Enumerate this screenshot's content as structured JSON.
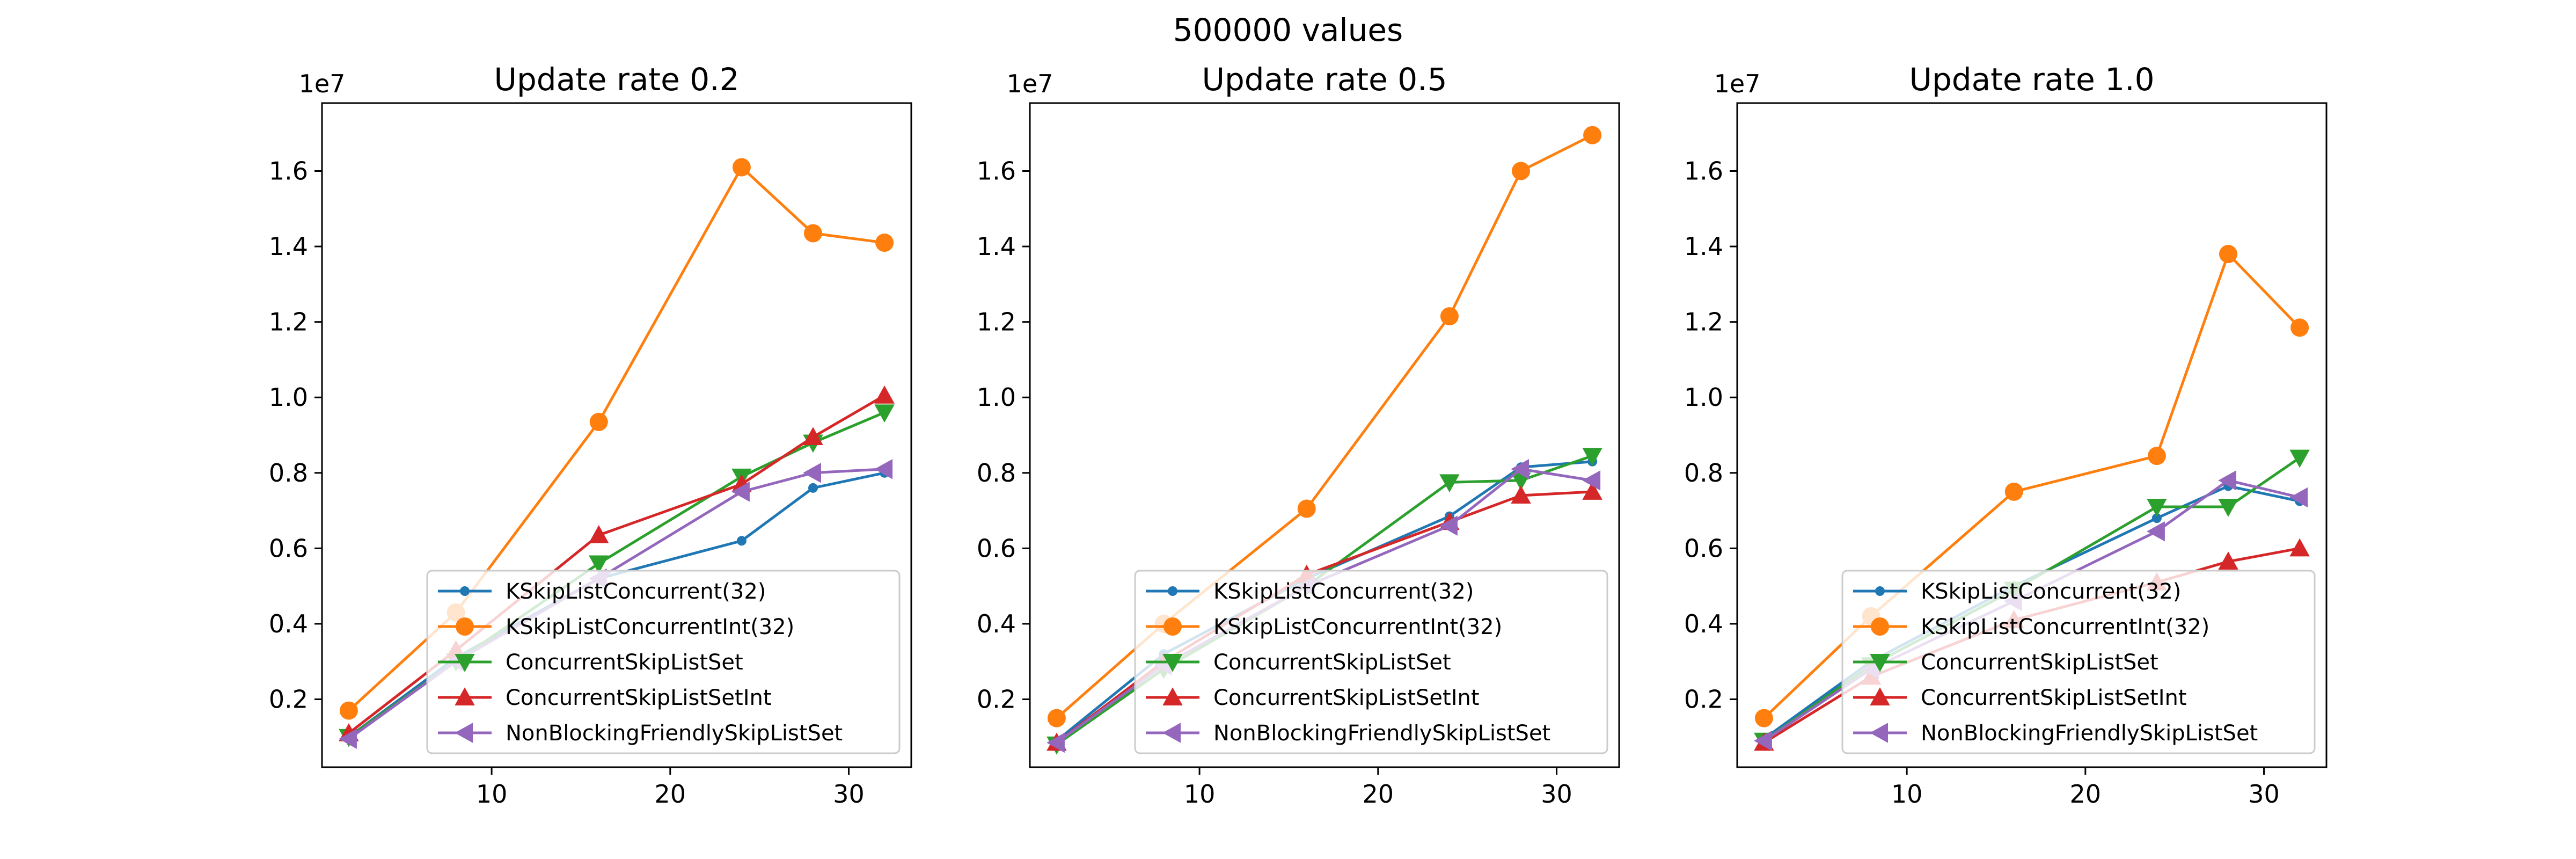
{
  "figure": {
    "suptitle": "500000 values"
  },
  "colors": {
    "KSkipListConcurrent(32)": "#1f77b4",
    "KSkipListConcurrentInt(32)": "#ff7f0e",
    "ConcurrentSkipListSet": "#2ca02c",
    "ConcurrentSkipListSetInt": "#d62728",
    "NonBlockingFriendlySkipListSet": "#9467bd"
  },
  "chart_data": [
    {
      "type": "line",
      "title": "Update rate 0.2",
      "xlabel": "",
      "ylabel": "",
      "y_offset_label": "1e7",
      "xlim": [
        0.5,
        33.5
      ],
      "ylim": [
        200000.0,
        17800000.0
      ],
      "xticks": [
        10,
        20,
        30
      ],
      "xtick_labels": [
        "10",
        "20",
        "30"
      ],
      "yticks": [
        2000000.0,
        4000000.0,
        6000000.0,
        8000000.0,
        10000000.0,
        12000000.0,
        14000000.0,
        16000000.0
      ],
      "ytick_labels": [
        "0.2",
        "0.4",
        "0.6",
        "0.8",
        "1.0",
        "1.2",
        "1.4",
        "1.6"
      ],
      "legend_position": "lower-right",
      "x": [
        2,
        8,
        16,
        24,
        28,
        32
      ],
      "series": [
        {
          "name": "KSkipListConcurrent(32)",
          "marker": "dot",
          "values": [
            1000000.0,
            3100000.0,
            5200000.0,
            6200000.0,
            7600000.0,
            8000000.0
          ]
        },
        {
          "name": "KSkipListConcurrentInt(32)",
          "marker": "circle",
          "values": [
            1700000.0,
            4300000.0,
            9350000.0,
            16100000.0,
            14350000.0,
            14100000.0
          ]
        },
        {
          "name": "ConcurrentSkipListSet",
          "marker": "triangle-down",
          "values": [
            1000000.0,
            3000000.0,
            5600000.0,
            7900000.0,
            8800000.0,
            9600000.0
          ]
        },
        {
          "name": "ConcurrentSkipListSetInt",
          "marker": "triangle-up",
          "values": [
            1100000.0,
            3300000.0,
            6350000.0,
            7700000.0,
            8950000.0,
            10050000.0
          ]
        },
        {
          "name": "NonBlockingFriendlySkipListSet",
          "marker": "triangle-left",
          "values": [
            950000.0,
            3000000.0,
            5200000.0,
            7500000.0,
            8000000.0,
            8100000.0
          ]
        }
      ]
    },
    {
      "type": "line",
      "title": "Update rate 0.5",
      "xlabel": "",
      "ylabel": "",
      "y_offset_label": "1e7",
      "xlim": [
        0.5,
        33.5
      ],
      "ylim": [
        200000.0,
        17800000.0
      ],
      "xticks": [
        10,
        20,
        30
      ],
      "xtick_labels": [
        "10",
        "20",
        "30"
      ],
      "yticks": [
        2000000.0,
        4000000.0,
        6000000.0,
        8000000.0,
        10000000.0,
        12000000.0,
        14000000.0,
        16000000.0
      ],
      "ytick_labels": [
        "0.2",
        "0.4",
        "0.6",
        "0.8",
        "1.0",
        "1.2",
        "1.4",
        "1.6"
      ],
      "legend_position": "lower-right",
      "x": [
        2,
        8,
        16,
        24,
        28,
        32
      ],
      "series": [
        {
          "name": "KSkipListConcurrent(32)",
          "marker": "dot",
          "values": [
            900000.0,
            3200000.0,
            5200000.0,
            6850000.0,
            8150000.0,
            8300000.0
          ]
        },
        {
          "name": "KSkipListConcurrentInt(32)",
          "marker": "circle",
          "values": [
            1500000.0,
            4000000.0,
            7050000.0,
            12150000.0,
            16000000.0,
            16950000.0
          ]
        },
        {
          "name": "ConcurrentSkipListSet",
          "marker": "triangle-down",
          "values": [
            800000.0,
            2800000.0,
            5000000.0,
            7750000.0,
            7800000.0,
            8450000.0
          ]
        },
        {
          "name": "ConcurrentSkipListSetInt",
          "marker": "triangle-up",
          "values": [
            850000.0,
            3000000.0,
            5300000.0,
            6700000.0,
            7400000.0,
            7500000.0
          ]
        },
        {
          "name": "NonBlockingFriendlySkipListSet",
          "marker": "triangle-left",
          "values": [
            850000.0,
            2900000.0,
            5000000.0,
            6600000.0,
            8100000.0,
            7800000.0
          ]
        }
      ]
    },
    {
      "type": "line",
      "title": "Update rate 1.0",
      "xlabel": "",
      "ylabel": "",
      "y_offset_label": "1e7",
      "xlim": [
        0.5,
        33.5
      ],
      "ylim": [
        200000.0,
        17800000.0
      ],
      "xticks": [
        10,
        20,
        30
      ],
      "xtick_labels": [
        "10",
        "20",
        "30"
      ],
      "yticks": [
        2000000.0,
        4000000.0,
        6000000.0,
        8000000.0,
        10000000.0,
        12000000.0,
        14000000.0,
        16000000.0
      ],
      "ytick_labels": [
        "0.2",
        "0.4",
        "0.6",
        "0.8",
        "1.0",
        "1.2",
        "1.4",
        "1.6"
      ],
      "legend_position": "lower-right",
      "x": [
        2,
        8,
        16,
        24,
        28,
        32
      ],
      "series": [
        {
          "name": "KSkipListConcurrent(32)",
          "marker": "dot",
          "values": [
            950000.0,
            3000000.0,
            5000000.0,
            6800000.0,
            7650000.0,
            7250000.0
          ]
        },
        {
          "name": "KSkipListConcurrentInt(32)",
          "marker": "circle",
          "values": [
            1500000.0,
            4200000.0,
            7500000.0,
            8450000.0,
            13800000.0,
            11850000.0
          ]
        },
        {
          "name": "ConcurrentSkipListSet",
          "marker": "triangle-down",
          "values": [
            900000.0,
            2900000.0,
            4900000.0,
            7100000.0,
            7100000.0,
            8400000.0
          ]
        },
        {
          "name": "ConcurrentSkipListSetInt",
          "marker": "triangle-up",
          "values": [
            850000.0,
            2600000.0,
            4100000.0,
            5100000.0,
            5650000.0,
            6000000.0
          ]
        },
        {
          "name": "NonBlockingFriendlySkipListSet",
          "marker": "triangle-left",
          "values": [
            900000.0,
            2800000.0,
            4600000.0,
            6450000.0,
            7800000.0,
            7350000.0
          ]
        }
      ]
    }
  ]
}
